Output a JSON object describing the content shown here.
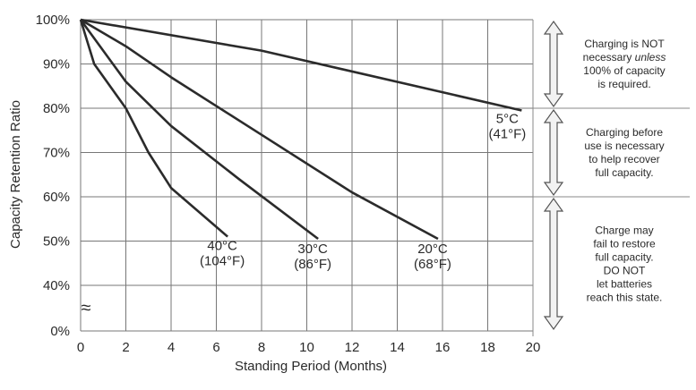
{
  "chart_data": {
    "type": "line",
    "title": "",
    "xlabel": "Standing Period (Months)",
    "ylabel": "Capacity Retention Ratio",
    "xlim": [
      0,
      20
    ],
    "ylim": [
      0,
      100
    ],
    "grid": true,
    "x_ticks": [
      "0",
      "2",
      "4",
      "6",
      "8",
      "10",
      "12",
      "14",
      "16",
      "18",
      "20"
    ],
    "y_ticks": [
      "100%",
      "90%",
      "80%",
      "70%",
      "60%",
      "50%",
      "40%",
      "0%"
    ],
    "axis_break_symbol": "≈",
    "series": [
      {
        "name": "5°C (41°F)",
        "label_lines": [
          "5°C",
          "(41°F)"
        ],
        "x": [
          0,
          8,
          19.5
        ],
        "y": [
          100,
          93,
          79.5
        ]
      },
      {
        "name": "20°C (68°F)",
        "label_lines": [
          "20°C",
          "(68°F)"
        ],
        "x": [
          0,
          2,
          4,
          8,
          12,
          15.8
        ],
        "y": [
          100,
          94,
          87,
          74,
          61,
          50.5
        ]
      },
      {
        "name": "30°C (86°F)",
        "label_lines": [
          "30°C",
          "(86°F)"
        ],
        "x": [
          0,
          2,
          4,
          7,
          10.5
        ],
        "y": [
          100,
          86,
          76,
          64,
          50.5
        ]
      },
      {
        "name": "40°C (104°F)",
        "label_lines": [
          "40°C",
          "(104°F)"
        ],
        "x": [
          0,
          0.6,
          2,
          3,
          4,
          6.5
        ],
        "y": [
          100,
          90,
          80,
          70,
          62,
          51
        ]
      }
    ],
    "annotations": [
      {
        "range": [
          80,
          100
        ],
        "lines": [
          "Charging is NOT",
          "necessary unless",
          "100% of capacity",
          "is required."
        ],
        "italic_word": "unless"
      },
      {
        "range": [
          60,
          80
        ],
        "lines": [
          "Charging before",
          "use is necessary",
          "to help recover",
          "full capacity."
        ]
      },
      {
        "range": [
          0,
          60
        ],
        "lines": [
          "Charge may",
          "fail to restore",
          "full capacity.",
          "DO NOT",
          "let batteries",
          "reach this state."
        ]
      }
    ]
  }
}
